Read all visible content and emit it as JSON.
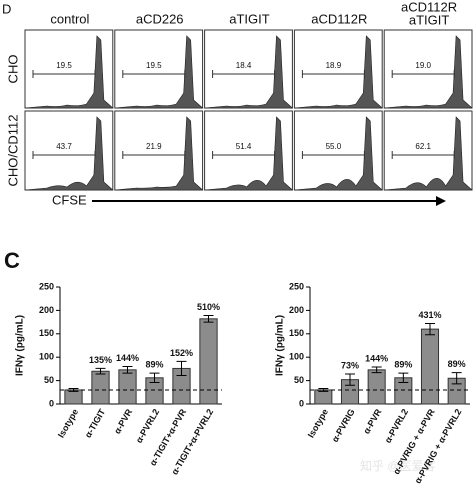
{
  "panel_d": {
    "letter": "D",
    "columns": [
      [
        "control"
      ],
      [
        "aCD226"
      ],
      [
        "aTIGIT"
      ],
      [
        "aCD112R"
      ],
      [
        "aCD112R",
        "aTIGIT"
      ]
    ],
    "rows": [
      {
        "label": "CHO",
        "gates": [
          "19.5",
          "19.5",
          "18.4",
          "18.9",
          "19.0"
        ]
      },
      {
        "label": "CHO/CD112",
        "gates": [
          "43.7",
          "21.9",
          "51.4",
          "55.0",
          "62.1"
        ]
      }
    ],
    "x_label": "CFSE"
  },
  "panel_c": {
    "letter": "C"
  },
  "chart_data": [
    {
      "type": "bar",
      "y_label": "IFNγ (pg/mL)",
      "categories": [
        "Isotype",
        "α-TIGIT",
        "α-PVR",
        "α-PVRL2",
        "α-TIGIT+α-PVR",
        "α-TIGIT+α-PVRL2"
      ],
      "values": [
        30,
        70,
        73,
        56,
        76,
        182
      ],
      "errors": [
        3,
        6,
        7,
        10,
        15,
        7
      ],
      "annotations": [
        null,
        "135%",
        "144%",
        "89%",
        "152%",
        "510%"
      ],
      "color": "#8c8c8c",
      "ylim": [
        0,
        250
      ],
      "yticks": [
        0,
        50,
        100,
        150,
        200,
        250
      ]
    },
    {
      "type": "bar",
      "y_label": "IFNγ (pg/mL)",
      "categories": [
        "Isotype",
        "α-PVRIG",
        "α-PVR",
        "α-PVRL2",
        "α-PVRIG + α-PVR",
        "α-PVRIG + α-PVRL2"
      ],
      "values": [
        30,
        52,
        73,
        56,
        160,
        55
      ],
      "errors": [
        3,
        12,
        6,
        10,
        12,
        12
      ],
      "annotations": [
        null,
        "73%",
        "144%",
        "89%",
        "431%",
        "89%"
      ],
      "color": "#8c8c8c",
      "ylim": [
        0,
        250
      ],
      "yticks": [
        0,
        50,
        100,
        150,
        200,
        250
      ]
    }
  ],
  "watermark": "知乎 @医爱客"
}
